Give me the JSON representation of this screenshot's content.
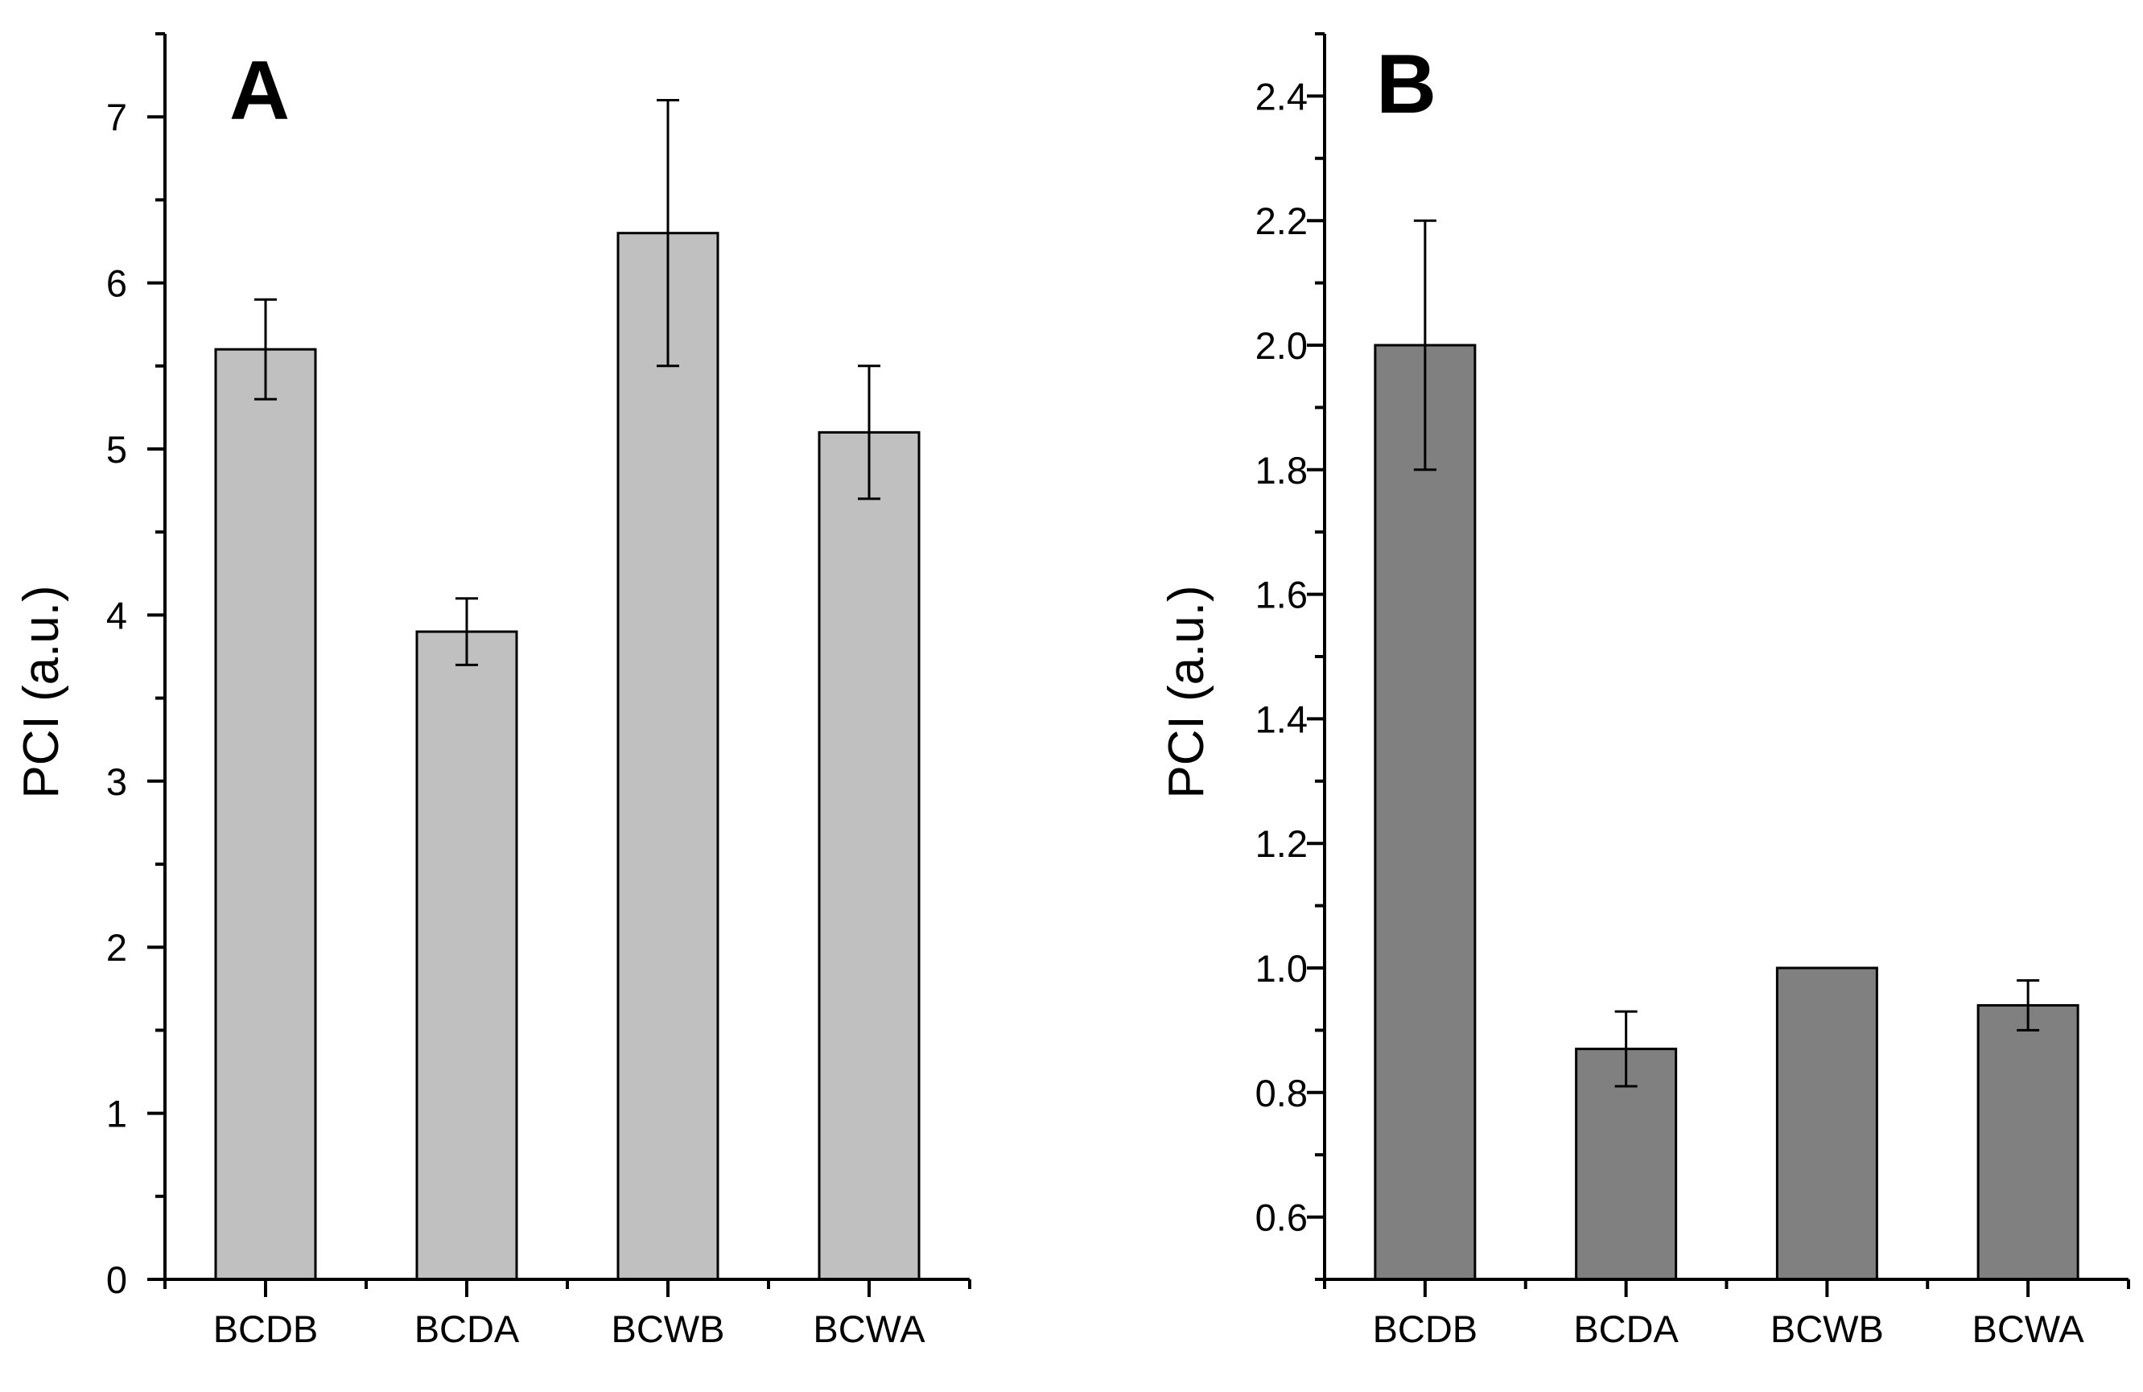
{
  "chart_data": [
    {
      "type": "bar",
      "panel_label": "A",
      "title": "",
      "xlabel": "",
      "ylabel": "PCI (a.u.)",
      "categories": [
        "BCDB",
        "BCDA",
        "BCWB",
        "BCWA"
      ],
      "values": [
        5.6,
        3.9,
        6.3,
        5.1
      ],
      "errors": [
        0.3,
        0.2,
        0.8,
        0.4
      ],
      "ylim": [
        0,
        7.5
      ],
      "yticks": [
        0,
        1,
        2,
        3,
        4,
        5,
        6,
        7
      ],
      "yticks_labels": [
        "0",
        "1",
        "2",
        "3",
        "4",
        "5",
        "6",
        "7"
      ],
      "bar_color": "#c0c0c0",
      "grid": false,
      "legend": "none"
    },
    {
      "type": "bar",
      "panel_label": "B",
      "title": "",
      "xlabel": "",
      "ylabel": "PCI (a.u.)",
      "categories": [
        "BCDB",
        "BCDA",
        "BCWB",
        "BCWA"
      ],
      "values": [
        2.0,
        0.87,
        1.0,
        0.94
      ],
      "errors": [
        0.2,
        0.06,
        0.0,
        0.04
      ],
      "ylim": [
        0.5,
        2.5
      ],
      "yticks": [
        0.6,
        0.8,
        1.0,
        1.2,
        1.4,
        1.6,
        1.8,
        2.0,
        2.2,
        2.4
      ],
      "yticks_labels": [
        "0.6",
        "0.8",
        "1.0",
        "1.2",
        "1.4",
        "1.6",
        "1.8",
        "2.0",
        "2.2",
        "2.4"
      ],
      "bar_color": "#808080",
      "grid": false,
      "legend": "none"
    }
  ]
}
